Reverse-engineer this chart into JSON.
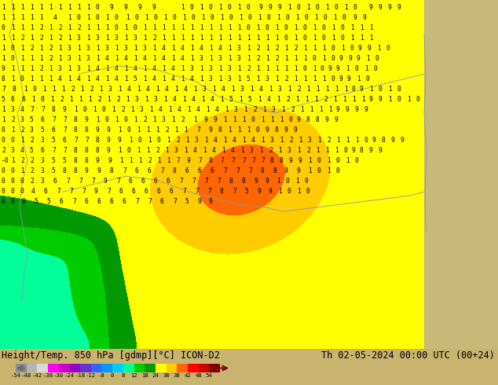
{
  "title_left": "Height/Temp. 850 hPa [gdmp][°C] ICON-D2",
  "title_right": "Th 02-05-2024 00:00 UTC (00+24)",
  "colorbar_ticks": [
    -54,
    -48,
    -42,
    -38,
    -30,
    -24,
    -18,
    -12,
    -8,
    0,
    8,
    12,
    18,
    24,
    30,
    38,
    42,
    48,
    54
  ],
  "colorbar_labels": [
    "-54",
    "-48",
    "-42",
    "-38",
    "-30",
    "-24",
    "-18",
    "-12",
    "-8",
    "0",
    "8",
    "12",
    "18",
    "24",
    "30",
    "38",
    "42",
    "48",
    "54"
  ],
  "colorbar_colors": [
    "#8c8c8c",
    "#b4b4b4",
    "#d8d8d8",
    "#ff00ff",
    "#cc00cc",
    "#9900cc",
    "#6633cc",
    "#3366ff",
    "#0099ff",
    "#00ccff",
    "#00ff99",
    "#00cc00",
    "#009900",
    "#ffff00",
    "#ffcc00",
    "#ff6600",
    "#ff0000",
    "#cc0000",
    "#800000"
  ],
  "background_color": "#c8b46e",
  "map_main_color": "#ffdd00",
  "map_orange_color": "#ffaa00",
  "map_right_color": "#c8b87a",
  "map_green1": "#00ff00",
  "map_green2": "#33cc00",
  "figsize": [
    6.34,
    4.9
  ],
  "dpi": 100
}
